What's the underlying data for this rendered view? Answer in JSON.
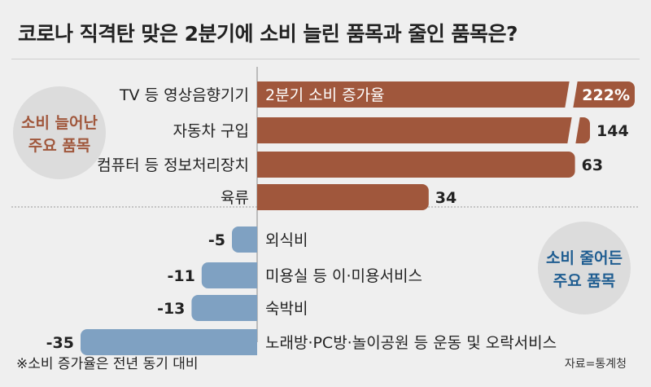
{
  "title": "코로나 직격탄 맞은 2분기에 소비 늘린 품목과 줄인 품목은?",
  "bubble_up": {
    "line1": "소비 늘어난",
    "line2": "주요 품목"
  },
  "bubble_down": {
    "line1": "소비 줄어든",
    "line2": "주요 품목"
  },
  "footnote": "※소비 증가율은 전년 동기 대비",
  "source": "자료=통계청",
  "colors": {
    "positive": "#a0573c",
    "negative": "#7fa1c2",
    "up_text": "#a0573c",
    "down_text": "#1f5d91",
    "bubble": "#dcdcdc"
  },
  "chart_data": {
    "type": "bar",
    "orientation": "horizontal",
    "series_label": "2분기 소비 증가율",
    "categories": [
      "TV 등 영상음향기기",
      "자동차 구입",
      "컴퓨터 등 정보처리장치",
      "육류",
      "외식비",
      "미용실 등 이·미용서비스",
      "숙박비",
      "노래방·PC방·놀이공원 등 운동 및 오락서비스"
    ],
    "values": [
      222,
      144,
      63,
      34,
      -5,
      -11,
      -13,
      -35
    ],
    "value_labels": [
      "222%",
      "144",
      "63",
      "34",
      "-5",
      "-11",
      "-13",
      "-35"
    ],
    "axis_break_categories": [
      "TV 등 영상음향기기",
      "자동차 구입"
    ]
  }
}
